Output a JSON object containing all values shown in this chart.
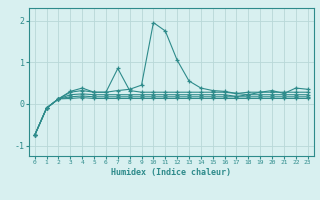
{
  "xlabel": "Humidex (Indice chaleur)",
  "x": [
    0,
    1,
    2,
    3,
    4,
    5,
    6,
    7,
    8,
    9,
    10,
    11,
    12,
    13,
    14,
    15,
    16,
    17,
    18,
    19,
    20,
    21,
    22,
    23
  ],
  "lines": [
    [
      -0.75,
      -0.1,
      0.12,
      0.3,
      0.38,
      0.28,
      0.28,
      0.32,
      0.35,
      0.45,
      1.95,
      1.75,
      1.05,
      0.55,
      0.38,
      0.32,
      0.3,
      0.25,
      0.22,
      0.28,
      0.32,
      0.25,
      0.38,
      0.35
    ],
    [
      -0.75,
      -0.1,
      0.12,
      0.28,
      0.32,
      0.28,
      0.28,
      0.85,
      0.32,
      0.28,
      0.28,
      0.28,
      0.28,
      0.28,
      0.28,
      0.28,
      0.28,
      0.25,
      0.28,
      0.28,
      0.28,
      0.28,
      0.28,
      0.28
    ],
    [
      -0.75,
      -0.1,
      0.12,
      0.22,
      0.24,
      0.22,
      0.22,
      0.22,
      0.22,
      0.22,
      0.22,
      0.22,
      0.22,
      0.22,
      0.22,
      0.22,
      0.22,
      0.18,
      0.22,
      0.22,
      0.22,
      0.22,
      0.22,
      0.22
    ],
    [
      -0.75,
      -0.1,
      0.12,
      0.17,
      0.19,
      0.17,
      0.17,
      0.17,
      0.17,
      0.17,
      0.17,
      0.17,
      0.17,
      0.17,
      0.17,
      0.17,
      0.17,
      0.17,
      0.17,
      0.17,
      0.17,
      0.17,
      0.17,
      0.17
    ],
    [
      -0.75,
      -0.1,
      0.12,
      0.13,
      0.15,
      0.13,
      0.13,
      0.13,
      0.13,
      0.13,
      0.13,
      0.13,
      0.13,
      0.13,
      0.13,
      0.13,
      0.13,
      0.13,
      0.13,
      0.13,
      0.13,
      0.13,
      0.13,
      0.13
    ]
  ],
  "line_color": "#2e8b8b",
  "marker": "+",
  "bg_color": "#d8f0f0",
  "grid_color": "#b8d8d8",
  "ylim": [
    -1.25,
    2.3
  ],
  "yticks": [
    -1,
    0,
    1,
    2
  ],
  "xlim": [
    -0.5,
    23.5
  ],
  "xticks": [
    0,
    1,
    2,
    3,
    4,
    5,
    6,
    7,
    8,
    9,
    10,
    11,
    12,
    13,
    14,
    15,
    16,
    17,
    18,
    19,
    20,
    21,
    22,
    23
  ]
}
